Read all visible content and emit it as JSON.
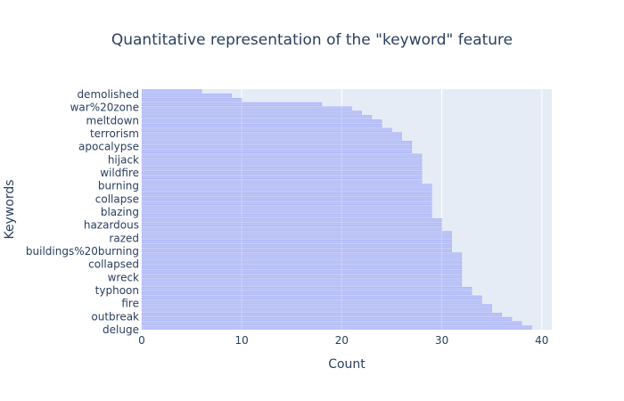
{
  "chart_data": {
    "type": "bar",
    "orientation": "horizontal",
    "title": "Quantitative representation of the \"keyword\" feature",
    "xlabel": "Count",
    "ylabel": "Keywords",
    "xlim": [
      0,
      41
    ],
    "x_ticks": [
      0,
      10,
      20,
      30,
      40
    ],
    "grid": true,
    "legend": "none",
    "colors": {
      "bar": "#636efa",
      "plot_bg": "#e5ecf6",
      "grid": "#ffffff",
      "text": "#2a3f5f"
    },
    "y_ticks_shown": [
      "demolished",
      "war%20zone",
      "meltdown",
      "terrorism",
      "apocalypse",
      "hijack",
      "wildfire",
      "burning",
      "collapse",
      "blazing",
      "hazardous",
      "razed",
      "buildings%20burning",
      "collapsed",
      "wreck",
      "typhoon",
      "fire",
      "outbreak",
      "deluge"
    ],
    "values_top_to_bottom": [
      6,
      9,
      10,
      18,
      21,
      22,
      23,
      24,
      24,
      25,
      26,
      26,
      27,
      27,
      27,
      28,
      28,
      28,
      28,
      28,
      28,
      28,
      29,
      29,
      29,
      29,
      29,
      29,
      29,
      29,
      30,
      30,
      30,
      31,
      31,
      31,
      31,
      31,
      32,
      32,
      32,
      32,
      32,
      32,
      32,
      32,
      33,
      33,
      34,
      34,
      35,
      35,
      36,
      37,
      38,
      39
    ]
  }
}
